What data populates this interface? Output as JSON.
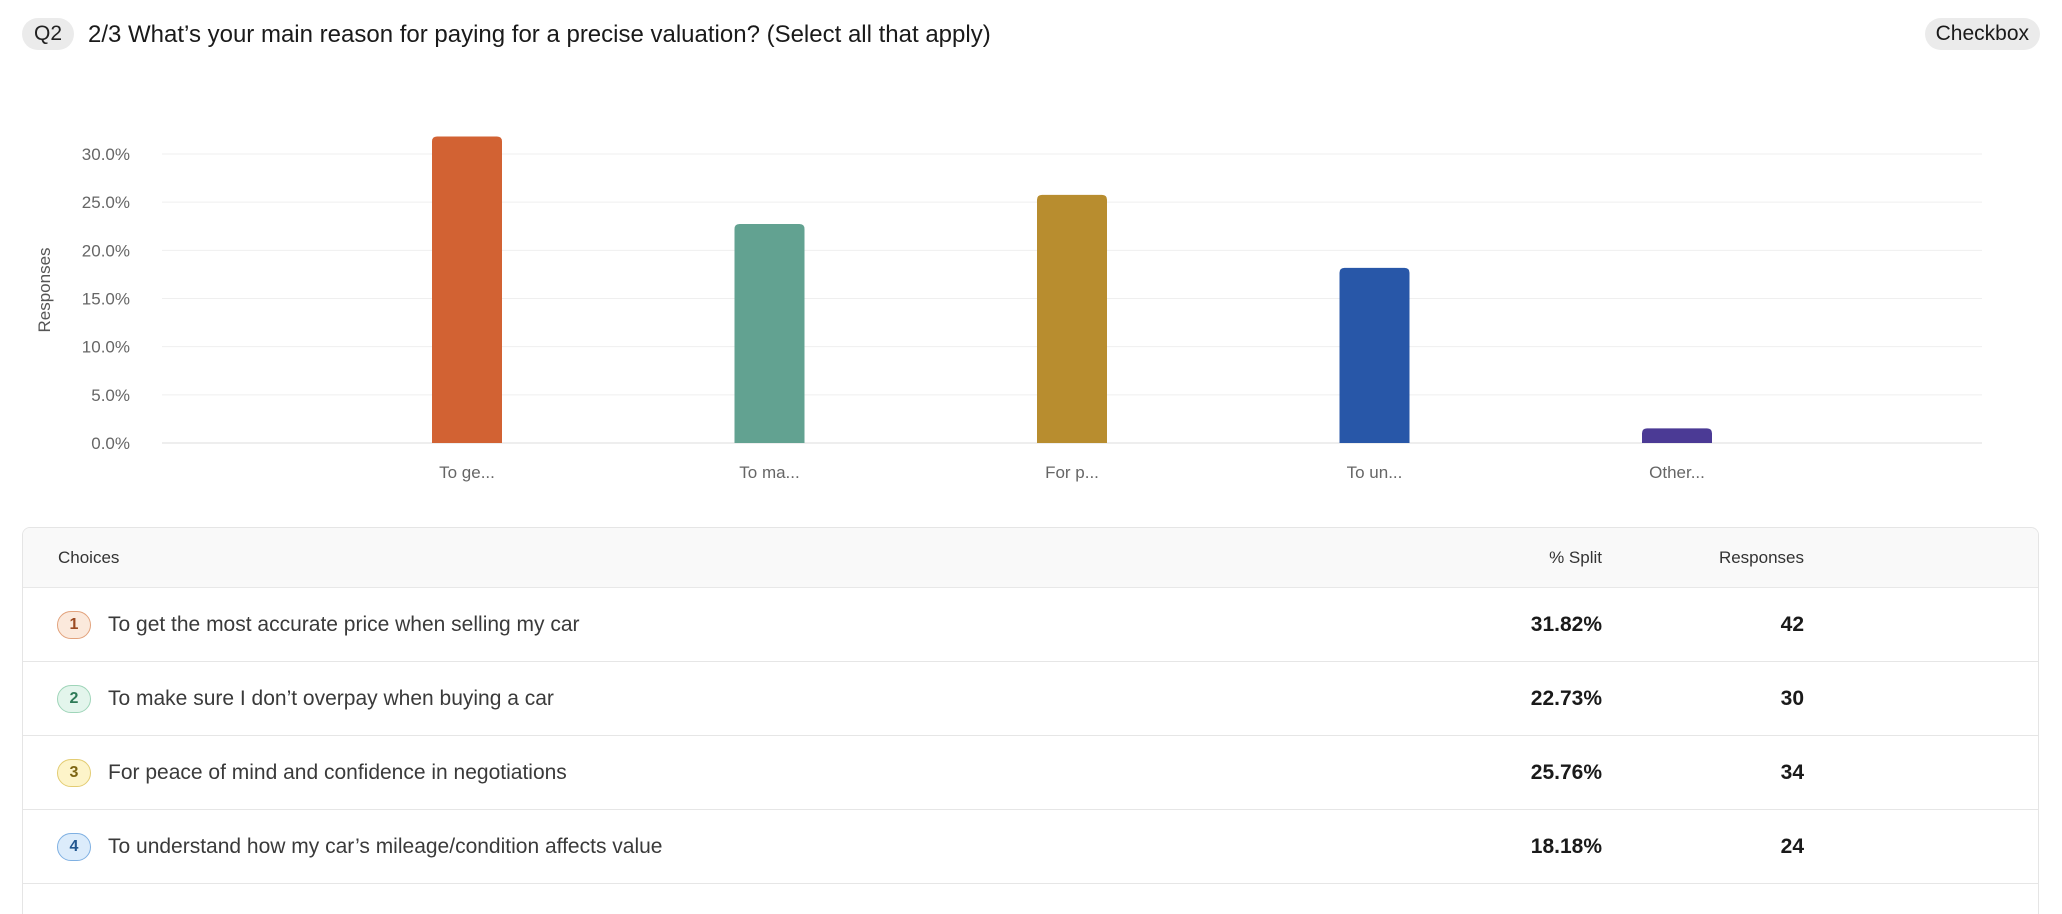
{
  "question": {
    "number": "Q2",
    "title": "2/3 What’s your main reason for paying for a precise valuation? (Select all that apply)",
    "type": "Checkbox"
  },
  "chart_data": {
    "type": "bar",
    "categories": [
      "To ge...",
      "To ma...",
      "For p...",
      "To un...",
      "Other..."
    ],
    "values": [
      31.82,
      22.73,
      25.76,
      18.18,
      1.52
    ],
    "colors": [
      "#d26233",
      "#62a291",
      "#b88d2f",
      "#2857a8",
      "#4b3a95"
    ],
    "ylabel": "Responses",
    "yticks": [
      "0.0%",
      "5.0%",
      "10.0%",
      "15.0%",
      "20.0%",
      "25.0%",
      "30.0%"
    ],
    "ylim": [
      0,
      30
    ],
    "grid": true,
    "legend": "none"
  },
  "table": {
    "headers": {
      "choices": "Choices",
      "split": "% Split",
      "responses": "Responses"
    },
    "rows": [
      {
        "n": "1",
        "label": "To get the most accurate price when selling my car",
        "split": "31.82%",
        "responses": "42",
        "badge_bg": "#fbe9dc",
        "badge_border": "#e2a27c",
        "badge_fg": "#9b4a22"
      },
      {
        "n": "2",
        "label": "To make sure I don’t overpay when buying a car",
        "split": "22.73%",
        "responses": "30",
        "badge_bg": "#e3f5ec",
        "badge_border": "#9fd5b9",
        "badge_fg": "#2d7a57"
      },
      {
        "n": "3",
        "label": "For peace of mind and confidence in negotiations",
        "split": "25.76%",
        "responses": "34",
        "badge_bg": "#fdf4c9",
        "badge_border": "#e3cc72",
        "badge_fg": "#7d6513"
      },
      {
        "n": "4",
        "label": "To understand how my car’s mileage/condition affects value",
        "split": "18.18%",
        "responses": "24",
        "badge_bg": "#dcecfb",
        "badge_border": "#7fb0e2",
        "badge_fg": "#22578f"
      }
    ]
  }
}
